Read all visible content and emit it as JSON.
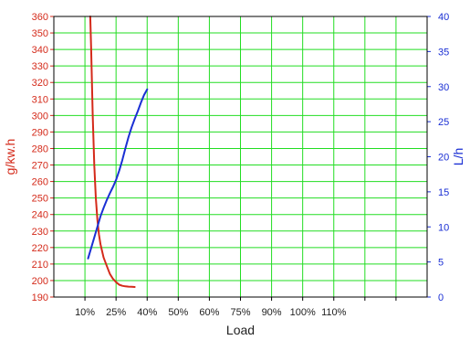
{
  "chart_data": {
    "type": "line",
    "xlabel": "Load",
    "categories": [
      "10%",
      "25%",
      "40%",
      "50%",
      "60%",
      "75%",
      "90%",
      "100%",
      "110%"
    ],
    "y_left": {
      "label": "g/kw.h",
      "range": [
        190,
        360
      ],
      "ticks": [
        190,
        200,
        210,
        220,
        230,
        240,
        250,
        260,
        270,
        280,
        290,
        300,
        310,
        320,
        330,
        340,
        350,
        360
      ],
      "color": "#d42a1a"
    },
    "y_right": {
      "label": "L/h",
      "range": [
        0,
        40
      ],
      "ticks": [
        0,
        5,
        10,
        15,
        20,
        25,
        30,
        35,
        40
      ],
      "color": "#1a2fd4"
    },
    "series": [
      {
        "axis": "left",
        "color": "#d42a1a",
        "points": [
          [
            0.17,
            360
          ],
          [
            0.2,
            340
          ],
          [
            0.25,
            300
          ],
          [
            0.3,
            270
          ],
          [
            0.35,
            250
          ],
          [
            0.4,
            237
          ],
          [
            0.45,
            228
          ],
          [
            0.5,
            222
          ],
          [
            0.6,
            214
          ],
          [
            0.7,
            209
          ],
          [
            0.8,
            204
          ],
          [
            0.9,
            201
          ],
          [
            1.0,
            199
          ],
          [
            1.1,
            197.5
          ],
          [
            1.2,
            196.8
          ],
          [
            1.3,
            196.5
          ],
          [
            1.4,
            196.3
          ],
          [
            1.5,
            196.2
          ],
          [
            1.6,
            196.1
          ]
        ]
      },
      {
        "axis": "right",
        "color": "#1a2fd4",
        "points": [
          [
            0.1,
            5.5
          ],
          [
            0.3,
            8.5
          ],
          [
            0.5,
            11.5
          ],
          [
            0.6,
            12.7
          ],
          [
            0.7,
            13.8
          ],
          [
            0.8,
            14.8
          ],
          [
            0.9,
            15.7
          ],
          [
            1.0,
            16.7
          ],
          [
            1.1,
            18.0
          ],
          [
            1.2,
            19.5
          ],
          [
            1.3,
            21.2
          ],
          [
            1.4,
            22.8
          ],
          [
            1.5,
            24.2
          ],
          [
            1.6,
            25.4
          ],
          [
            1.7,
            26.5
          ],
          [
            1.8,
            27.7
          ],
          [
            1.9,
            28.8
          ],
          [
            2.0,
            29.6
          ]
        ]
      }
    ],
    "grid": true,
    "grid_color": "#22dd22",
    "background": "#ffffff"
  }
}
